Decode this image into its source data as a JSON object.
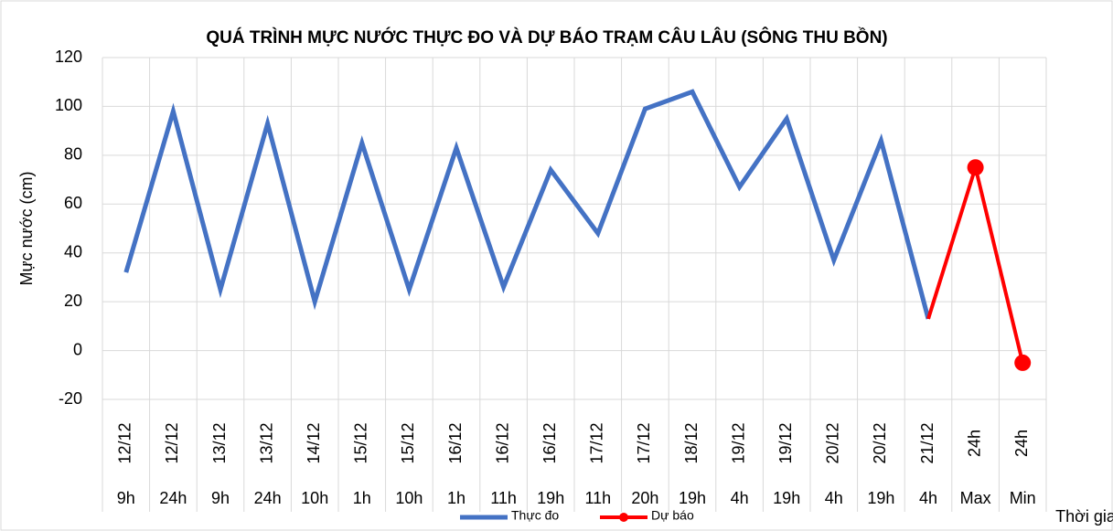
{
  "chart_data": {
    "type": "line",
    "title": "QUÁ TRÌNH MỰC NƯỚC THỰC ĐO VÀ DỰ BÁO TRẠM CÂU LÂU (SÔNG THU BỒN)",
    "y_label": "Mực nước (cm)",
    "x_label": "Thời gian",
    "categories": [
      "12/12",
      "12/12",
      "13/12",
      "13/12",
      "14/12",
      "15/12",
      "15/12",
      "16/12",
      "16/12",
      "16/12",
      "17/12",
      "17/12",
      "18/12",
      "19/12",
      "19/12",
      "20/12",
      "20/12",
      "21/12",
      "24h",
      "24h"
    ],
    "subcategories": [
      "9h",
      "24h",
      "9h",
      "24h",
      "10h",
      "1h",
      "10h",
      "1h",
      "11h",
      "19h",
      "11h",
      "20h",
      "19h",
      "4h",
      "19h",
      "4h",
      "19h",
      "4h",
      "Max",
      "Min"
    ],
    "series": [
      {
        "name": "Thực đo",
        "color": "#4472c4",
        "values": [
          32,
          98,
          25,
          93,
          20,
          85,
          25,
          83,
          26,
          74,
          48,
          99,
          106,
          67,
          95,
          37,
          86,
          13,
          null,
          null
        ]
      },
      {
        "name": "Dự báo",
        "color": "#ff0000",
        "values": [
          null,
          null,
          null,
          null,
          null,
          null,
          null,
          null,
          null,
          null,
          null,
          null,
          null,
          null,
          null,
          null,
          null,
          13,
          75,
          -5
        ]
      }
    ],
    "ylim": [
      -20,
      120
    ],
    "yticks": [
      -20,
      0,
      20,
      40,
      60,
      80,
      100,
      120
    ],
    "grid": true,
    "legend": "bottom"
  }
}
